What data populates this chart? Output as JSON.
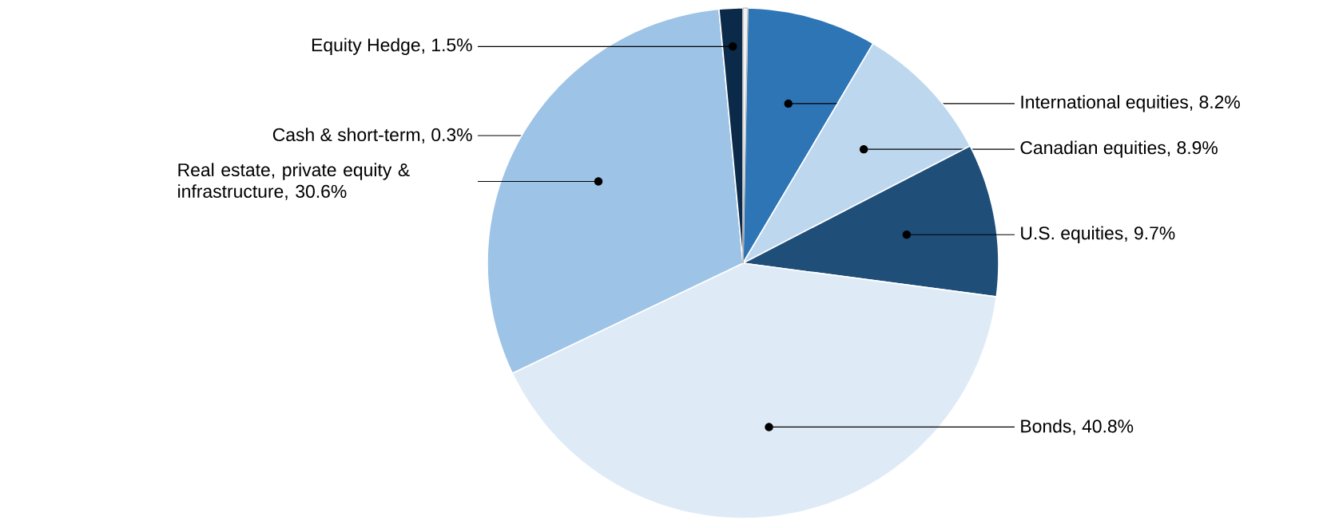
{
  "chart_data": {
    "type": "pie",
    "categories": [
      "Cash & short-term, 0.3%",
      "International equities, 8.2%",
      "Canadian equities, 8.9%",
      "U.S. equities, 9.7%",
      "Bonds, 40.8%",
      "Real estate, private equity & infrastructure, 30.6%",
      "Equity Hedge, 1.5%"
    ],
    "values": [
      0.3,
      8.2,
      8.9,
      9.7,
      40.8,
      30.6,
      1.5
    ],
    "colors": [
      "#f2f2f2",
      "#2e75b6",
      "#bdd7ee",
      "#1f4e79",
      "#deebf7",
      "#9dc3e6",
      "#0b2a4a"
    ]
  }
}
